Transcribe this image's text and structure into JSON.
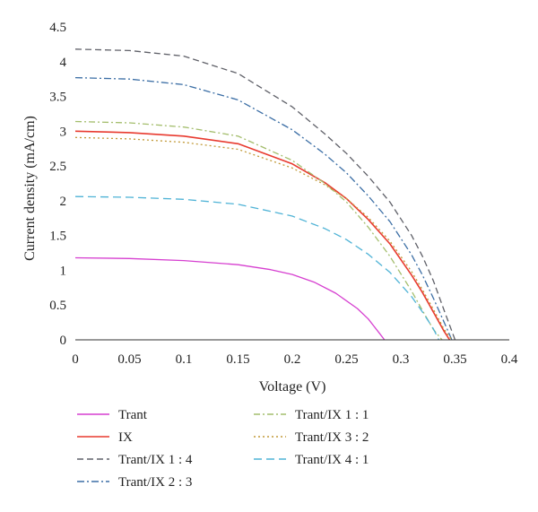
{
  "chart_data": {
    "type": "line",
    "xlabel": "Voltage (V)",
    "ylabel": "Current density (mA/cm)",
    "xlim": [
      0,
      0.4
    ],
    "ylim": [
      0,
      4.5
    ],
    "xticks": [
      "0",
      "0.05",
      "0.1",
      "0.15",
      "0.2",
      "0.25",
      "0.3",
      "0.35",
      "0.4"
    ],
    "yticks": [
      "0",
      "0.5",
      "1",
      "1.5",
      "2",
      "2.5",
      "3",
      "3.5",
      "4",
      "4.5"
    ],
    "grid": false,
    "legend_position": "bottom",
    "series": [
      {
        "name": "Trant",
        "color": "#d63fd0",
        "dash": "solid",
        "x": [
          0,
          0.05,
          0.1,
          0.15,
          0.18,
          0.2,
          0.22,
          0.24,
          0.26,
          0.27,
          0.275,
          0.28,
          0.285
        ],
        "y": [
          1.18,
          1.17,
          1.14,
          1.08,
          1.01,
          0.94,
          0.83,
          0.67,
          0.45,
          0.3,
          0.2,
          0.1,
          0
        ]
      },
      {
        "name": "IX",
        "color": "#e83a2f",
        "dash": "solid",
        "x": [
          0,
          0.05,
          0.1,
          0.15,
          0.2,
          0.23,
          0.25,
          0.27,
          0.29,
          0.31,
          0.32,
          0.33,
          0.34,
          0.345
        ],
        "y": [
          3.0,
          2.98,
          2.93,
          2.82,
          2.53,
          2.26,
          2.03,
          1.73,
          1.38,
          0.93,
          0.68,
          0.4,
          0.12,
          0
        ]
      },
      {
        "name": "Trant/IX 1 : 4",
        "color": "#5f6068",
        "dash": "7,4",
        "x": [
          0,
          0.05,
          0.1,
          0.15,
          0.2,
          0.23,
          0.25,
          0.27,
          0.29,
          0.31,
          0.32,
          0.33,
          0.34,
          0.35
        ],
        "y": [
          4.18,
          4.16,
          4.08,
          3.83,
          3.35,
          2.96,
          2.68,
          2.35,
          1.98,
          1.5,
          1.2,
          0.85,
          0.42,
          0
        ]
      },
      {
        "name": "Trant/IX 2 : 3",
        "color": "#3b6ea5",
        "dash": "8,3,2,3",
        "x": [
          0,
          0.05,
          0.1,
          0.15,
          0.2,
          0.23,
          0.25,
          0.27,
          0.29,
          0.31,
          0.32,
          0.33,
          0.34,
          0.347
        ],
        "y": [
          3.77,
          3.75,
          3.67,
          3.45,
          3.02,
          2.67,
          2.4,
          2.07,
          1.7,
          1.22,
          0.93,
          0.6,
          0.25,
          0
        ]
      },
      {
        "name": "Trant/IX 1 : 1",
        "color": "#a4be6d",
        "dash": "7,3,2,3",
        "x": [
          0,
          0.05,
          0.1,
          0.15,
          0.2,
          0.23,
          0.25,
          0.27,
          0.29,
          0.31,
          0.32,
          0.33,
          0.338
        ],
        "y": [
          3.14,
          3.12,
          3.06,
          2.93,
          2.58,
          2.25,
          1.98,
          1.62,
          1.2,
          0.7,
          0.42,
          0.15,
          0
        ]
      },
      {
        "name": "Trant/IX 3 : 2",
        "color": "#c29a38",
        "dash": "2,3",
        "x": [
          0,
          0.05,
          0.1,
          0.15,
          0.2,
          0.23,
          0.25,
          0.27,
          0.29,
          0.31,
          0.32,
          0.33,
          0.34,
          0.347
        ],
        "y": [
          2.91,
          2.89,
          2.84,
          2.74,
          2.47,
          2.23,
          2.03,
          1.76,
          1.42,
          0.98,
          0.72,
          0.44,
          0.15,
          0
        ]
      },
      {
        "name": "Trant/IX 4 : 1",
        "color": "#4fb3d6",
        "dash": "9,5",
        "x": [
          0,
          0.05,
          0.1,
          0.15,
          0.2,
          0.23,
          0.25,
          0.27,
          0.29,
          0.31,
          0.32,
          0.33,
          0.335
        ],
        "y": [
          2.06,
          2.05,
          2.02,
          1.95,
          1.78,
          1.6,
          1.44,
          1.23,
          0.97,
          0.62,
          0.4,
          0.16,
          0
        ]
      }
    ]
  }
}
